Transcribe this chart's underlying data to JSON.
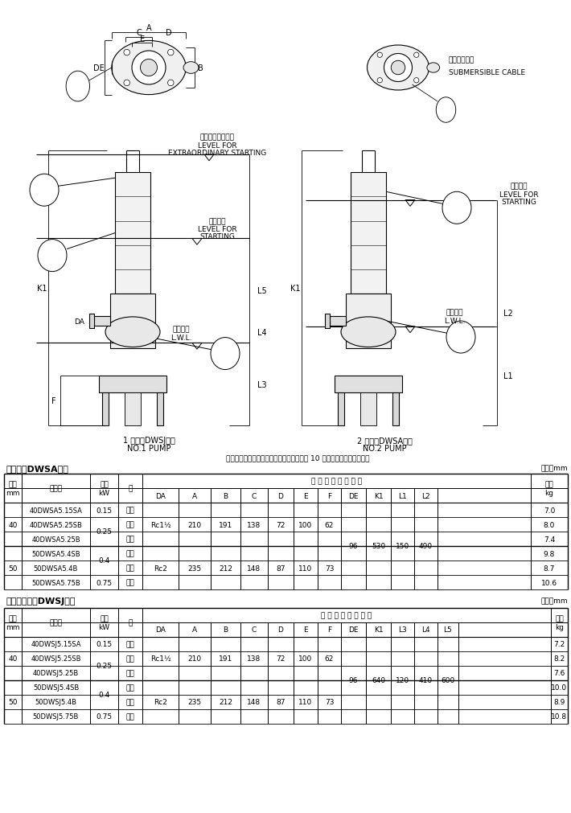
{
  "background_color": "#ffffff",
  "table1_title": "自動形（DWSA型）",
  "table1_unit": "単位：mm",
  "table2_title": "自動交互形（DWSJ型）",
  "table2_unit": "単位：mm",
  "note": "注）運転可能最低水位での連続運転時間は 10 分以内にしてください。",
  "pump1_label_line1": "1 号機（DWSJ型）",
  "pump1_label_line2": "NO.1 PUMP",
  "pump2_label_line1": "2 号機（DWSA型）",
  "pump2_label_line2": "NO.2 PUMP",
  "cable_label_j": "水中ケーブル",
  "cable_label_e": "SUBMERSIBLE CABLE",
  "extraordinary_label_j": "異常増水始動水位",
  "extraordinary_label_e1": "LEVEL FOR",
  "extraordinary_label_e2": "EXTRAORDINARY STARTING",
  "starting_label_j": "始動水位",
  "starting_label_e1": "LEVEL FOR",
  "starting_label_e2": "STARTING",
  "stop_label_j": "停止水位",
  "stop_label_e": "L.W.L.",
  "sub_header1": [
    "DA",
    "A",
    "B",
    "C",
    "D",
    "E",
    "F",
    "DE",
    "K1",
    "L1",
    "L2"
  ],
  "sub_header2": [
    "DA",
    "A",
    "B",
    "C",
    "D",
    "E",
    "F",
    "DE",
    "K1",
    "L3",
    "L4",
    "L5"
  ],
  "table1_rows": [
    {
      "kei": "40",
      "name": "40DWSA5.15SA",
      "kw": "0.15",
      "so": "単相",
      "da": "Rc1½",
      "A": "210",
      "B": "191",
      "C": "138",
      "D": "72",
      "E": "100",
      "F": "62",
      "DE": "96",
      "K1": "530",
      "L1": "150",
      "L2": "490",
      "mass": "7.0",
      "kw_merge": true,
      "kei_rows": 3
    },
    {
      "kei": "",
      "name": "40DWSA5.25SB",
      "kw": "0.25",
      "so": "単相",
      "da": "",
      "A": "",
      "B": "",
      "C": "",
      "D": "",
      "E": "",
      "F": "",
      "DE": "",
      "K1": "",
      "L1": "",
      "L2": "",
      "mass": "8.0"
    },
    {
      "kei": "",
      "name": "40DWSA5.25B",
      "kw": "",
      "so": "三相",
      "da": "",
      "A": "",
      "B": "",
      "C": "",
      "D": "",
      "E": "",
      "F": "",
      "DE": "",
      "K1": "",
      "L1": "",
      "L2": "",
      "mass": "7.4"
    },
    {
      "kei": "50",
      "name": "50DWSA5.4SB",
      "kw": "0.4",
      "so": "単相",
      "da": "Rc2",
      "A": "235",
      "B": "212",
      "C": "148",
      "D": "87",
      "E": "110",
      "F": "73",
      "DE": "",
      "K1": "",
      "L1": "",
      "L2": "",
      "mass": "9.8",
      "kei_rows": 3
    },
    {
      "kei": "",
      "name": "50DWSA5.4B",
      "kw": "",
      "so": "三相",
      "da": "",
      "A": "",
      "B": "",
      "C": "",
      "D": "",
      "E": "",
      "F": "",
      "DE": "",
      "K1": "",
      "L1": "",
      "L2": "",
      "mass": "8.7"
    },
    {
      "kei": "",
      "name": "50DWSA5.75B",
      "kw": "0.75",
      "so": "三相",
      "da": "",
      "A": "",
      "B": "",
      "C": "",
      "D": "",
      "E": "",
      "F": "",
      "DE": "",
      "K1": "",
      "L1": "",
      "L2": "",
      "mass": "10.6"
    }
  ],
  "table2_rows": [
    {
      "kei": "40",
      "name": "40DWSJ5.15SA",
      "kw": "0.15",
      "so": "単相",
      "da": "Rc1½",
      "A": "210",
      "B": "191",
      "C": "138",
      "D": "72",
      "E": "100",
      "F": "62",
      "DE": "96",
      "K1": "640",
      "L3": "120",
      "L4": "410",
      "L5": "600",
      "mass": "7.2",
      "kei_rows": 3
    },
    {
      "kei": "",
      "name": "40DWSJ5.25SB",
      "kw": "0.25",
      "so": "単相",
      "da": "",
      "A": "",
      "B": "",
      "C": "",
      "D": "",
      "E": "",
      "F": "",
      "DE": "",
      "K1": "",
      "L3": "",
      "L4": "",
      "L5": "",
      "mass": "8.2"
    },
    {
      "kei": "",
      "name": "40DWSJ5.25B",
      "kw": "",
      "so": "三相",
      "da": "",
      "A": "",
      "B": "",
      "C": "",
      "D": "",
      "E": "",
      "F": "",
      "DE": "",
      "K1": "",
      "L3": "",
      "L4": "",
      "L5": "",
      "mass": "7.6"
    },
    {
      "kei": "50",
      "name": "50DWSJ5.4SB",
      "kw": "0.4",
      "so": "単相",
      "da": "Rc2",
      "A": "235",
      "B": "212",
      "C": "148",
      "D": "87",
      "E": "110",
      "F": "73",
      "DE": "",
      "K1": "",
      "L3": "",
      "L4": "",
      "L5": "",
      "mass": "10.0",
      "kei_rows": 3
    },
    {
      "kei": "",
      "name": "50DWSJ5.4B",
      "kw": "",
      "so": "三相",
      "da": "",
      "A": "",
      "B": "",
      "C": "",
      "D": "",
      "E": "",
      "F": "",
      "DE": "",
      "K1": "",
      "L3": "",
      "L4": "",
      "L5": "",
      "mass": "8.9"
    },
    {
      "kei": "",
      "name": "50DWSJ5.75B",
      "kw": "0.75",
      "so": "三相",
      "da": "",
      "A": "",
      "B": "",
      "C": "",
      "D": "",
      "E": "",
      "F": "",
      "DE": "",
      "K1": "",
      "L3": "",
      "L4": "",
      "L5": "",
      "mass": "10.8"
    }
  ]
}
